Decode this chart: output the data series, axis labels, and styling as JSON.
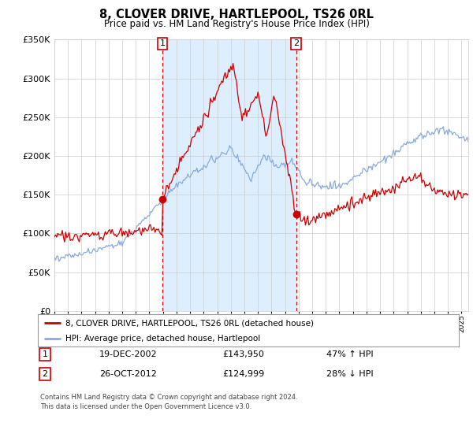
{
  "title": "8, CLOVER DRIVE, HARTLEPOOL, TS26 0RL",
  "subtitle": "Price paid vs. HM Land Registry's House Price Index (HPI)",
  "legend_line1": "8, CLOVER DRIVE, HARTLEPOOL, TS26 0RL (detached house)",
  "legend_line2": "HPI: Average price, detached house, Hartlepool",
  "transaction1_label": "1",
  "transaction1_date": "19-DEC-2002",
  "transaction1_price": "£143,950",
  "transaction1_hpi": "47% ↑ HPI",
  "transaction1_year": 2002.96,
  "transaction1_value": 143950,
  "transaction2_label": "2",
  "transaction2_date": "26-OCT-2012",
  "transaction2_price": "£124,999",
  "transaction2_hpi": "28% ↓ HPI",
  "transaction2_year": 2012.82,
  "transaction2_value": 124999,
  "footer_line1": "Contains HM Land Registry data © Crown copyright and database right 2024.",
  "footer_line2": "This data is licensed under the Open Government Licence v3.0.",
  "property_color": "#cc0000",
  "hpi_color": "#88aadd",
  "shaded_color": "#ddeeff",
  "vline_color": "#cc0000",
  "dot_color": "#cc0000",
  "ylim_min": 0,
  "ylim_max": 350000,
  "xlim_min": 1995,
  "xlim_max": 2025.5,
  "background_color": "#ffffff",
  "grid_color": "#cccccc"
}
